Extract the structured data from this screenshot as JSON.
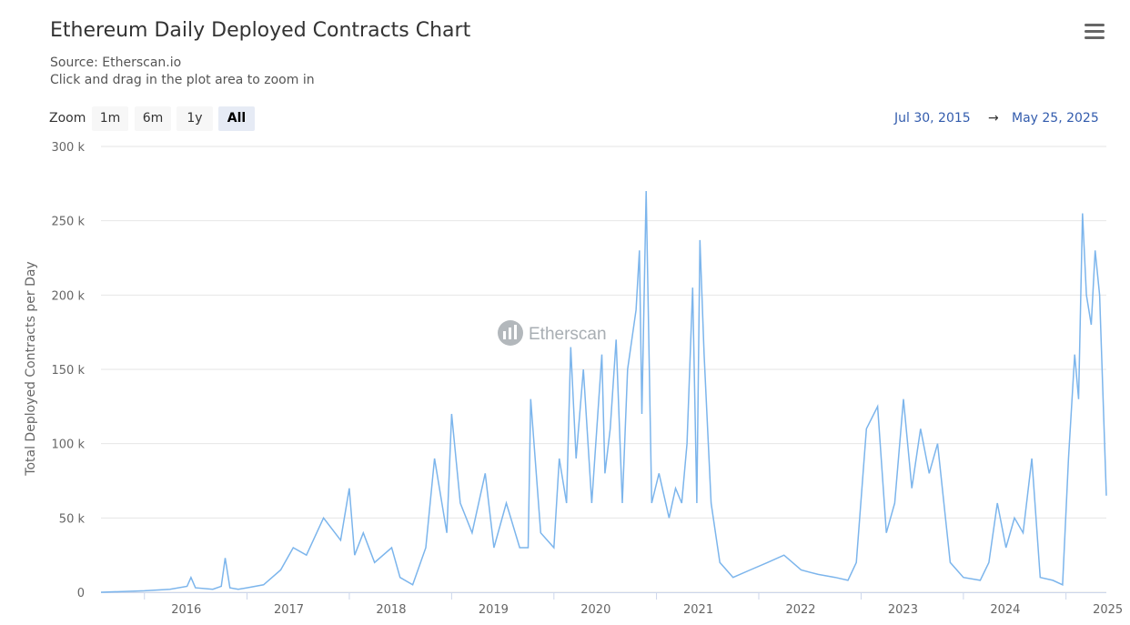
{
  "header": {
    "title": "Ethereum Daily Deployed Contracts Chart",
    "source": "Source: Etherscan.io",
    "hint": "Click and drag in the plot area to zoom in",
    "menu_icon": "hamburger-menu-icon"
  },
  "zoom": {
    "label": "Zoom",
    "buttons": [
      "1m",
      "6m",
      "1y",
      "All"
    ],
    "active": "All"
  },
  "range": {
    "from": "Jul 30, 2015",
    "arrow": "→",
    "to": "May 25, 2025"
  },
  "watermark": {
    "text": "Etherscan",
    "icon": "etherscan-logo-icon"
  },
  "colors": {
    "series": "#7cb5ec",
    "grid": "#e6e6e6",
    "axis_text": "#666666"
  },
  "chart_data": {
    "type": "line",
    "title": "Ethereum Daily Deployed Contracts Chart",
    "ylabel": "Total Deployed Contracts per Day",
    "ylim": [
      0,
      300000
    ],
    "yticks": [
      0,
      50000,
      100000,
      150000,
      200000,
      250000,
      300000
    ],
    "ytick_labels": [
      "0",
      "50 k",
      "100 k",
      "150 k",
      "200 k",
      "250 k",
      "300 k"
    ],
    "xlim": [
      "2015-07-30",
      "2025-05-25"
    ],
    "xtick_labels": [
      "2016",
      "2017",
      "2018",
      "2019",
      "2020",
      "2021",
      "2022",
      "2023",
      "2024",
      "2025"
    ],
    "xtick_dates": [
      "2016-01-01",
      "2017-01-01",
      "2018-01-01",
      "2019-01-01",
      "2020-01-01",
      "2021-01-01",
      "2022-01-01",
      "2023-01-01",
      "2024-01-01",
      "2025-01-01"
    ],
    "grid": true,
    "legend": "none",
    "series": [
      {
        "x": [
          "2015-07-30",
          "2016-01-01",
          "2016-04-01",
          "2016-06-01",
          "2016-06-15",
          "2016-07-01",
          "2016-09-01",
          "2016-10-01",
          "2016-10-15",
          "2016-11-01",
          "2016-12-01",
          "2017-01-01",
          "2017-03-01",
          "2017-05-01",
          "2017-06-15",
          "2017-08-01",
          "2017-10-01",
          "2017-12-01",
          "2018-01-01",
          "2018-01-20",
          "2018-02-20",
          "2018-04-01",
          "2018-06-01",
          "2018-07-01",
          "2018-08-15",
          "2018-10-01",
          "2018-11-01",
          "2018-12-15",
          "2019-01-01",
          "2019-02-01",
          "2019-03-15",
          "2019-05-01",
          "2019-06-01",
          "2019-07-15",
          "2019-09-01",
          "2019-10-01",
          "2019-10-10",
          "2019-11-15",
          "2020-01-01",
          "2020-01-20",
          "2020-02-15",
          "2020-03-01",
          "2020-03-20",
          "2020-04-15",
          "2020-05-15",
          "2020-06-20",
          "2020-07-01",
          "2020-07-20",
          "2020-08-10",
          "2020-09-01",
          "2020-09-20",
          "2020-10-20",
          "2020-11-01",
          "2020-11-10",
          "2020-11-25",
          "2020-12-15",
          "2021-01-10",
          "2021-02-15",
          "2021-03-10",
          "2021-04-01",
          "2021-04-20",
          "2021-05-10",
          "2021-05-25",
          "2021-06-05",
          "2021-06-20",
          "2021-07-15",
          "2021-08-15",
          "2021-10-01",
          "2021-12-01",
          "2022-02-01",
          "2022-04-01",
          "2022-06-01",
          "2022-08-01",
          "2022-10-01",
          "2022-11-15",
          "2022-12-15",
          "2023-01-20",
          "2023-03-01",
          "2023-04-01",
          "2023-05-01",
          "2023-06-01",
          "2023-07-01",
          "2023-08-01",
          "2023-09-01",
          "2023-10-01",
          "2023-11-15",
          "2024-01-01",
          "2024-03-01",
          "2024-04-01",
          "2024-05-01",
          "2024-06-01",
          "2024-07-01",
          "2024-08-01",
          "2024-09-01",
          "2024-10-01",
          "2024-11-15",
          "2024-12-20",
          "2025-01-10",
          "2025-02-01",
          "2025-02-15",
          "2025-03-01",
          "2025-03-15",
          "2025-04-01",
          "2025-04-15",
          "2025-05-01",
          "2025-05-25"
        ],
        "y": [
          0,
          1000,
          2000,
          4000,
          10000,
          3000,
          2000,
          4000,
          23000,
          3000,
          2000,
          3000,
          5000,
          15000,
          30000,
          25000,
          50000,
          35000,
          70000,
          25000,
          40000,
          20000,
          30000,
          10000,
          5000,
          30000,
          90000,
          40000,
          120000,
          60000,
          40000,
          80000,
          30000,
          60000,
          30000,
          30000,
          130000,
          40000,
          30000,
          90000,
          60000,
          165000,
          90000,
          150000,
          60000,
          160000,
          80000,
          110000,
          170000,
          60000,
          150000,
          190000,
          230000,
          120000,
          270000,
          60000,
          80000,
          50000,
          70000,
          60000,
          100000,
          205000,
          60000,
          237000,
          160000,
          60000,
          20000,
          10000,
          15000,
          20000,
          25000,
          15000,
          12000,
          10000,
          8000,
          20000,
          110000,
          125000,
          40000,
          60000,
          130000,
          70000,
          110000,
          80000,
          100000,
          20000,
          10000,
          8000,
          20000,
          60000,
          30000,
          50000,
          40000,
          90000,
          10000,
          8000,
          5000,
          90000,
          160000,
          130000,
          255000,
          200000,
          180000,
          230000,
          200000,
          65000
        ]
      }
    ]
  }
}
